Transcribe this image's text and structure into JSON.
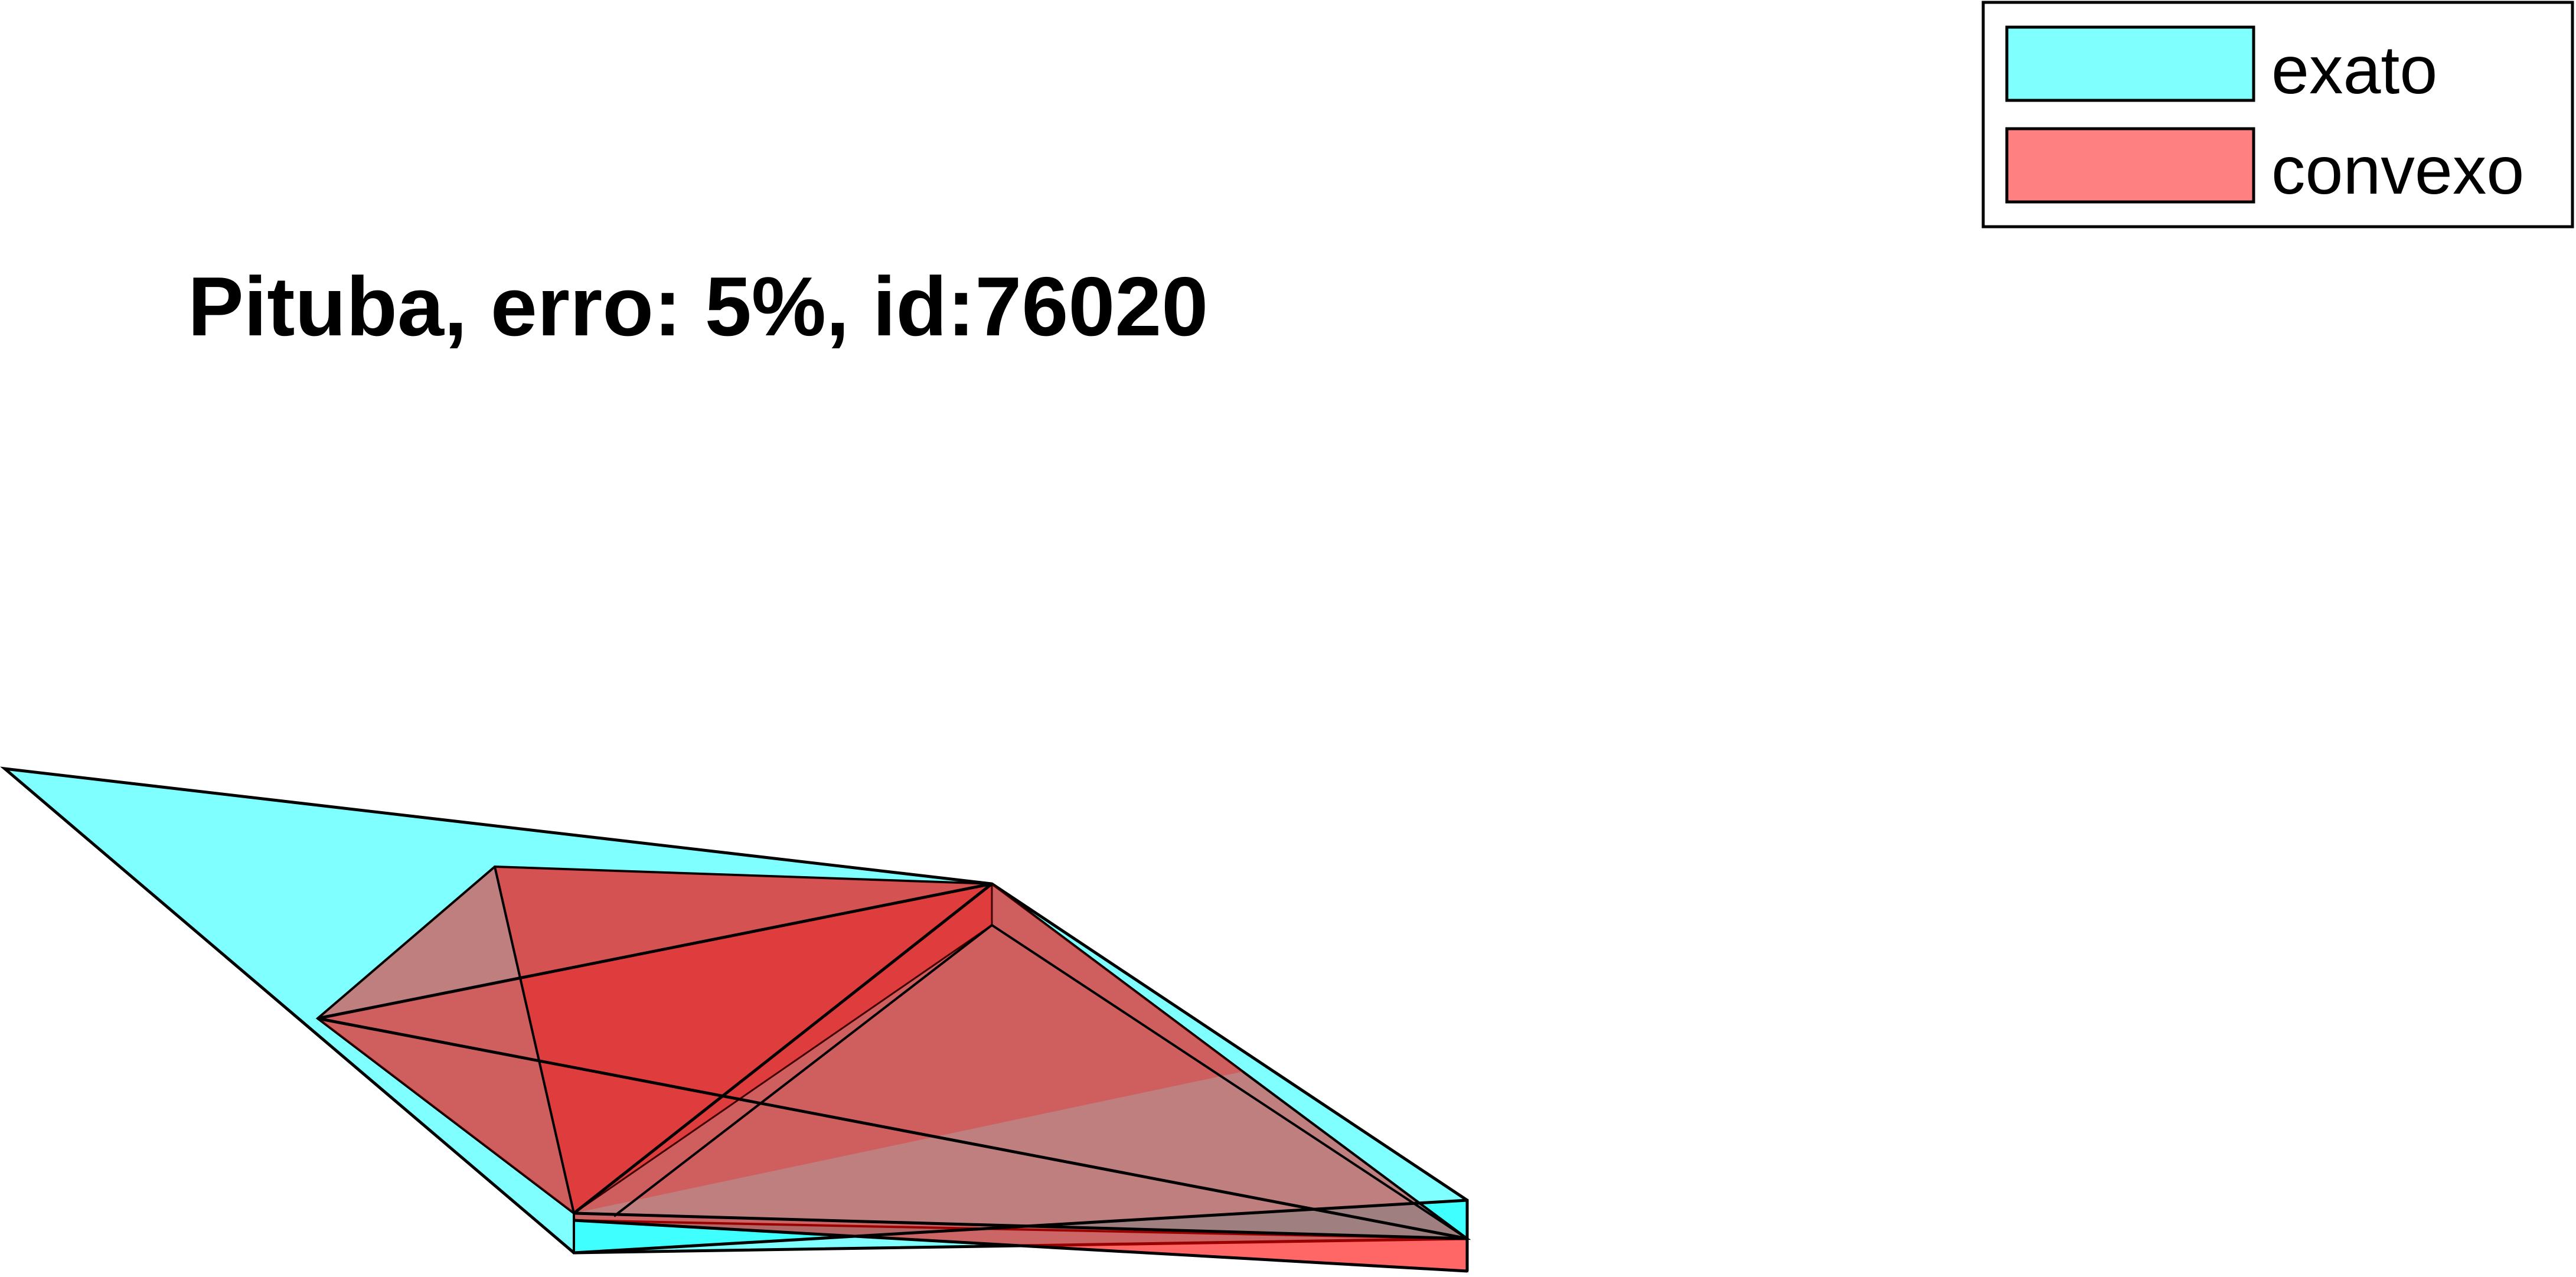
{
  "title": "Pituba, erro: 5%, id:76020",
  "legend": {
    "placement": "top-right",
    "items": [
      {
        "label": "exato",
        "color": "#80ffff"
      },
      {
        "label": "convexo",
        "color": "#ff8080"
      }
    ]
  },
  "colors": {
    "exato_fill": "#00ffff",
    "convexo_fill": "#ff0000",
    "edge": "#000000"
  },
  "view": "3d-polyhedra-side-view"
}
